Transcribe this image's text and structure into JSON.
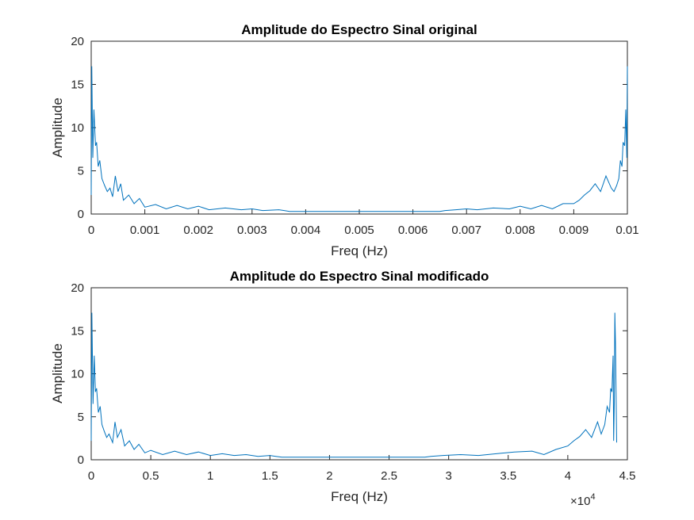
{
  "chart_data": [
    {
      "type": "line",
      "title": "Amplitude do Espectro Sinal original",
      "xlabel": "Freq (Hz)",
      "ylabel": "Amplitude",
      "xlim": [
        0,
        0.01
      ],
      "ylim": [
        0,
        20
      ],
      "xticks": [
        0,
        0.001,
        0.002,
        0.003,
        0.004,
        0.005,
        0.006,
        0.007,
        0.008,
        0.009,
        0.01
      ],
      "xtick_labels": [
        "0",
        "0.001",
        "0.002",
        "0.003",
        "0.004",
        "0.005",
        "0.006",
        "0.007",
        "0.008",
        "0.009",
        "0.01"
      ],
      "yticks": [
        0,
        5,
        10,
        15,
        20
      ],
      "ytick_labels": [
        "0",
        "5",
        "10",
        "15",
        "20"
      ],
      "grid": false,
      "color": "#0072BD",
      "series": [
        {
          "x": [
            0,
            1e-05,
            3e-05,
            5e-05,
            8e-05,
            0.0001,
            0.00013,
            0.00016,
            0.0002,
            0.00025,
            0.0003,
            0.00035,
            0.0004,
            0.00045,
            0.0005,
            0.00055,
            0.0006,
            0.0007,
            0.0008,
            0.0009,
            0.001,
            0.0012,
            0.0014,
            0.0016,
            0.0018,
            0.002,
            0.0022,
            0.0025,
            0.0028,
            0.003,
            0.0032,
            0.0035,
            0.0036,
            0.0037,
            0.0065,
            0.0066,
            0.0068,
            0.007,
            0.0072,
            0.0075,
            0.0078,
            0.008,
            0.0082,
            0.0084,
            0.0086,
            0.0088,
            0.009,
            0.0091,
            0.0092,
            0.0093,
            0.0094,
            0.0095,
            0.0096,
            0.0097,
            0.00975,
            0.0098,
            0.00984,
            0.00987,
            0.0099,
            0.00992,
            0.00995,
            0.00997,
            0.00999,
            0.01
          ],
          "y": [
            2.2,
            17.1,
            6.5,
            12.1,
            7.9,
            8.3,
            5.5,
            6.2,
            4.1,
            3.3,
            2.6,
            3.0,
            2.0,
            4.4,
            2.6,
            3.5,
            1.6,
            2.2,
            1.2,
            1.8,
            0.8,
            1.1,
            0.6,
            1.0,
            0.6,
            0.9,
            0.5,
            0.7,
            0.5,
            0.6,
            0.4,
            0.5,
            0.4,
            0.3,
            0.3,
            0.4,
            0.5,
            0.6,
            0.5,
            0.7,
            0.6,
            0.9,
            0.6,
            1.0,
            0.6,
            1.2,
            1.2,
            1.6,
            2.2,
            2.7,
            3.5,
            2.6,
            4.4,
            3.0,
            2.6,
            3.3,
            4.1,
            6.2,
            5.5,
            8.3,
            7.9,
            12.1,
            6.5,
            17.1
          ]
        }
      ]
    },
    {
      "type": "line",
      "title": "Amplitude do Espectro Sinal modificado",
      "xlabel": "Freq (Hz)",
      "ylabel": "Amplitude",
      "xlim": [
        0,
        45000
      ],
      "ylim": [
        0,
        20
      ],
      "xticks": [
        0,
        5000,
        10000,
        15000,
        20000,
        25000,
        30000,
        35000,
        40000,
        45000
      ],
      "xtick_labels": [
        "0",
        "0.5",
        "1",
        "1.5",
        "2",
        "2.5",
        "3",
        "3.5",
        "4",
        "4.5"
      ],
      "x_exponent_label": "×10",
      "x_exponent": "4",
      "yticks": [
        0,
        5,
        10,
        15,
        20
      ],
      "ytick_labels": [
        "0",
        "5",
        "10",
        "15",
        "20"
      ],
      "grid": false,
      "color": "#0072BD",
      "series": [
        {
          "x": [
            0,
            50,
            150,
            250,
            350,
            450,
            600,
            750,
            900,
            1100,
            1300,
            1500,
            1800,
            2000,
            2200,
            2500,
            2800,
            3200,
            3600,
            4000,
            4500,
            5000,
            6000,
            7000,
            8000,
            9000,
            10000,
            11000,
            12000,
            13000,
            14000,
            15000,
            15500,
            16000,
            28000,
            28500,
            29500,
            31000,
            32500,
            34000,
            35500,
            37000,
            38000,
            39000,
            40000,
            40500,
            41000,
            41500,
            42000,
            42500,
            42800,
            43100,
            43300,
            43500,
            43600,
            43700,
            43800,
            43850,
            43900,
            43950,
            44000,
            44100
          ],
          "y": [
            2.2,
            17.1,
            6.5,
            12.1,
            7.9,
            8.3,
            5.5,
            6.2,
            4.1,
            3.3,
            2.6,
            3.0,
            2.0,
            4.4,
            2.6,
            3.5,
            1.6,
            2.2,
            1.2,
            1.8,
            0.8,
            1.1,
            0.6,
            1.0,
            0.6,
            0.9,
            0.5,
            0.7,
            0.5,
            0.6,
            0.4,
            0.5,
            0.4,
            0.3,
            0.3,
            0.4,
            0.5,
            0.6,
            0.5,
            0.7,
            0.9,
            1.0,
            0.6,
            1.2,
            1.6,
            2.2,
            2.7,
            3.5,
            2.6,
            4.4,
            3.0,
            4.1,
            6.2,
            5.5,
            8.3,
            7.9,
            12.1,
            2.2,
            6.5,
            17.1,
            13.5,
            2.0
          ]
        }
      ]
    }
  ]
}
